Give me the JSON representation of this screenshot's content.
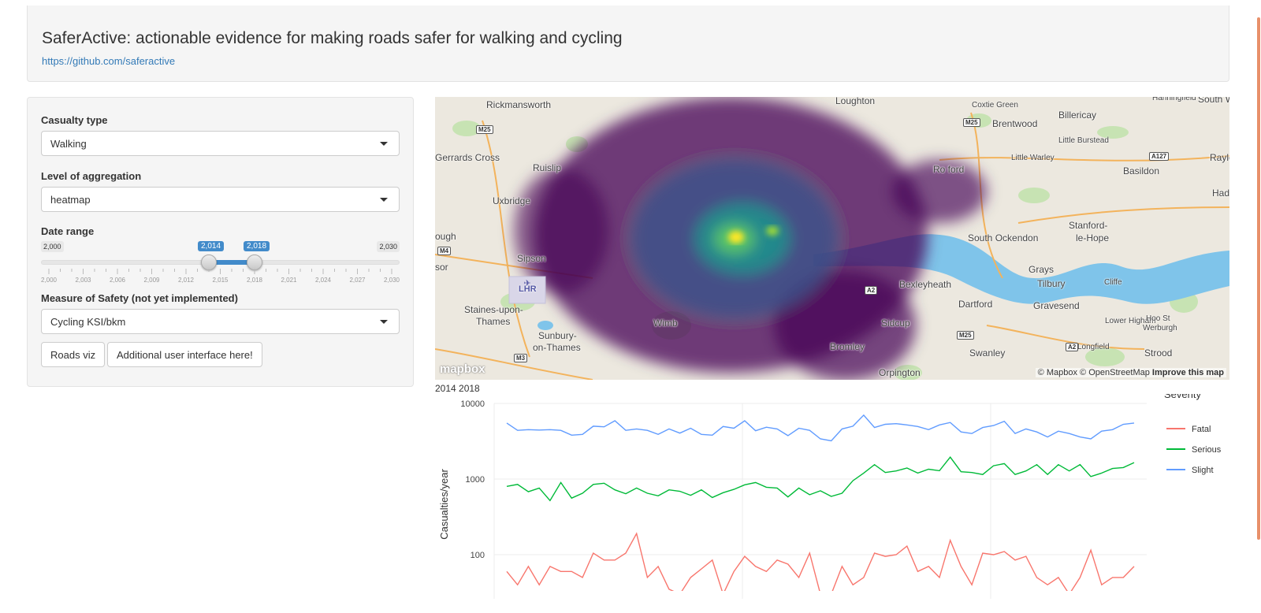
{
  "header": {
    "title": "SaferActive: actionable evidence for making roads safer for walking and cycling",
    "link": "https://github.com/saferactive"
  },
  "sidebar": {
    "casualty_type": {
      "label": "Casualty type",
      "value": "Walking"
    },
    "aggregation": {
      "label": "Level of aggregation",
      "value": "heatmap"
    },
    "date_range": {
      "label": "Date range",
      "min_label": "2,000",
      "max_label": "2,030",
      "from_label": "2,014",
      "to_label": "2,018",
      "min": 2000,
      "max": 2030,
      "from": 2014,
      "to": 2018,
      "tick_labels": [
        "2,000",
        "2,003",
        "2,006",
        "2,009",
        "2,012",
        "2,015",
        "2,018",
        "2,021",
        "2,024",
        "2,027",
        "2,030"
      ]
    },
    "measure": {
      "label": "Measure of Safety (not yet implemented)",
      "value": "Cycling KSI/bkm"
    },
    "buttons": {
      "roads_viz": "Roads viz",
      "additional": "Additional user interface here!"
    }
  },
  "map": {
    "labels": [
      {
        "t": "Rickmansworth"
      },
      {
        "t": "Loughton"
      },
      {
        "t": "Coxtie Green"
      },
      {
        "t": "Hanningfield"
      },
      {
        "t": "South W"
      },
      {
        "t": "Brentwood"
      },
      {
        "t": "Billericay"
      },
      {
        "t": "Little Burstead"
      },
      {
        "t": "Gerrards Cross"
      },
      {
        "t": "Ruislip"
      },
      {
        "t": "Little Warley"
      },
      {
        "t": "Basildon"
      },
      {
        "t": "Rayle"
      },
      {
        "t": "Uxbridge"
      },
      {
        "t": "Hadl"
      },
      {
        "t": "South Ockendon"
      },
      {
        "t": "Stanford-"
      },
      {
        "t": "le-Hope"
      },
      {
        "t": "ough"
      },
      {
        "t": "Sipson"
      },
      {
        "t": "Grays"
      },
      {
        "t": "Tilbury"
      },
      {
        "t": "Cliffe"
      },
      {
        "t": "sor"
      },
      {
        "t": "Bexleyheath"
      },
      {
        "t": "Dartford"
      },
      {
        "t": "Gravesend"
      },
      {
        "t": "Staines-upon-"
      },
      {
        "t": "Thames"
      },
      {
        "t": "Sidcup"
      },
      {
        "t": "Lower Higham"
      },
      {
        "t": "Hoo St"
      },
      {
        "t": "Werburgh"
      },
      {
        "t": "Sunbury-"
      },
      {
        "t": "on-Thames"
      },
      {
        "t": "Wimb"
      },
      {
        "t": "Swanley"
      },
      {
        "t": "Longfield"
      },
      {
        "t": "Strood"
      },
      {
        "t": "Bromley"
      },
      {
        "t": "Ro ford"
      },
      {
        "t": "LHR"
      },
      {
        "t": "Orpington"
      }
    ],
    "roads": [
      "M25",
      "M25",
      "A127",
      "M4",
      "A2",
      "M25",
      "M3",
      "A2"
    ],
    "attribution_mapbox": "© Mapbox",
    "attribution_osm": "© OpenStreetMap",
    "attribution_improve": "Improve this map",
    "logo": "mapbox",
    "heat_colors": [
      "#440154",
      "#3b528b",
      "#21908d",
      "#5dc962",
      "#fde725"
    ]
  },
  "date_caption": "2014 2018",
  "chart_data": {
    "type": "line",
    "ylabel": "Casualties/year",
    "yscale": "log",
    "yticks": [
      "10000",
      "1000",
      "100"
    ],
    "ylim": [
      30,
      10000
    ],
    "legend_title": "Severity",
    "legend_position": "top-right",
    "series": [
      {
        "name": "Fatal",
        "color": "#f8766d",
        "values": [
          60,
          40,
          70,
          40,
          70,
          60,
          60,
          50,
          105,
          85,
          85,
          105,
          190,
          50,
          70,
          35,
          30,
          50,
          65,
          85,
          30,
          60,
          95,
          70,
          60,
          85,
          75,
          50,
          105,
          30,
          30,
          70,
          40,
          50,
          105,
          95,
          100,
          130,
          60,
          70,
          50,
          155,
          70,
          40,
          105,
          100,
          110,
          85,
          95,
          50,
          40,
          50,
          30,
          50,
          115,
          40,
          50,
          50,
          70
        ]
      },
      {
        "name": "Serious",
        "color": "#00ba38",
        "values": [
          800,
          850,
          680,
          760,
          520,
          900,
          560,
          650,
          850,
          880,
          720,
          640,
          760,
          650,
          600,
          720,
          690,
          610,
          720,
          570,
          660,
          730,
          840,
          900,
          780,
          760,
          580,
          760,
          620,
          700,
          590,
          650,
          950,
          1200,
          1550,
          1220,
          1280,
          1400,
          1200,
          1350,
          1290,
          1950,
          1250,
          1220,
          1150,
          1500,
          1600,
          1150,
          1280,
          1550,
          1150,
          1550,
          1280,
          1550,
          1080,
          1200,
          1380,
          1420,
          1650
        ]
      },
      {
        "name": "Slight",
        "color": "#619cff",
        "values": [
          5500,
          4400,
          4500,
          4450,
          4500,
          4400,
          3800,
          3900,
          5000,
          4900,
          5900,
          4400,
          4600,
          4400,
          3900,
          4600,
          4050,
          4700,
          3900,
          3800,
          4950,
          4700,
          5900,
          4350,
          4850,
          4600,
          3750,
          4700,
          4400,
          3400,
          3200,
          4600,
          5000,
          7000,
          4800,
          5300,
          5400,
          5200,
          4950,
          4500,
          5200,
          5600,
          4200,
          4000,
          4800,
          5100,
          5800,
          4000,
          4600,
          4200,
          3600,
          4300,
          4000,
          3600,
          3400,
          4300,
          4500,
          5300,
          5500
        ]
      }
    ]
  }
}
